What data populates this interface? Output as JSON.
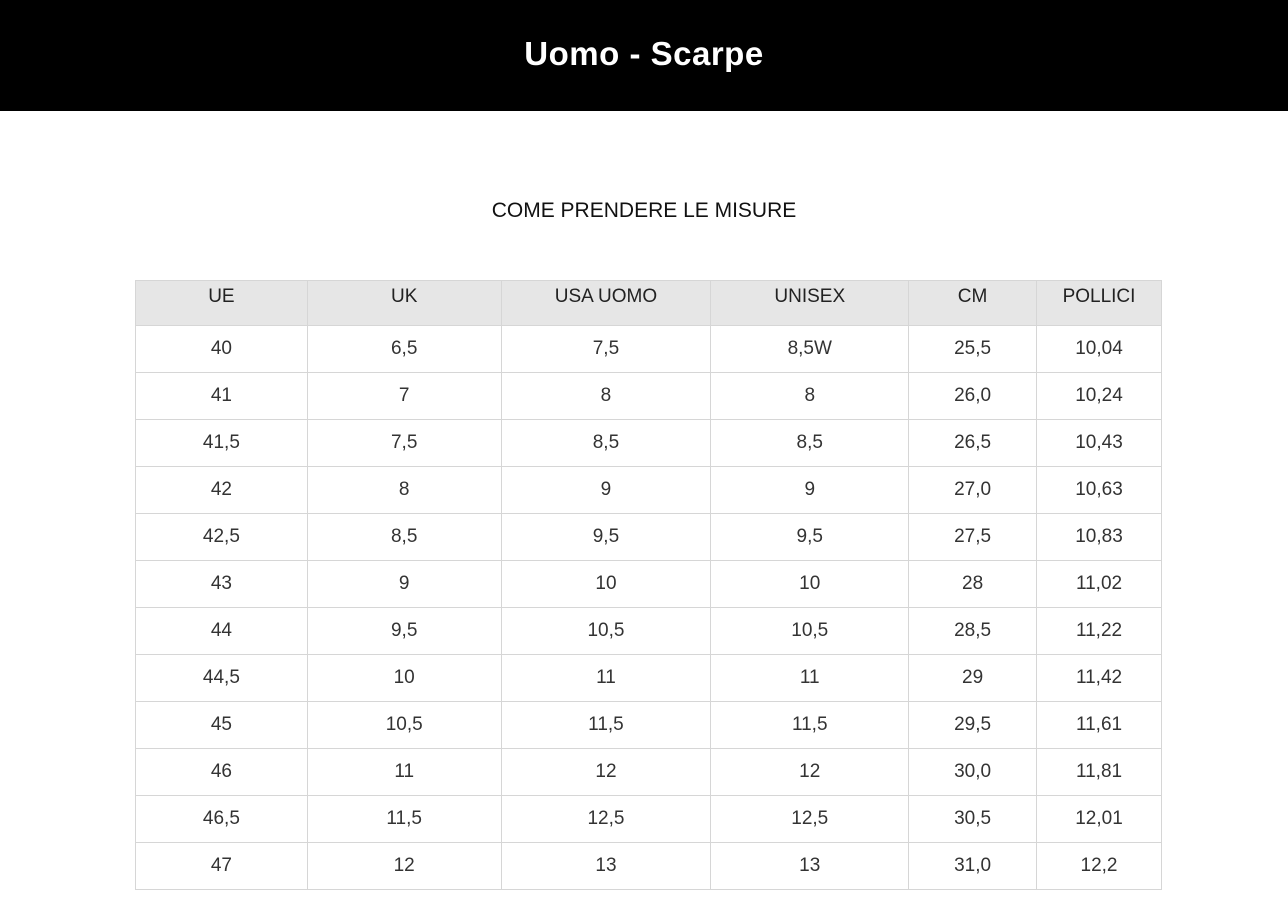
{
  "header": {
    "title": "Uomo - Scarpe"
  },
  "subtitle": "COME PRENDERE LE MISURE",
  "table": {
    "columns": [
      "UE",
      "UK",
      "USA UOMO",
      "UNISEX",
      "CM",
      "POLLICI"
    ],
    "rows": [
      [
        "40",
        "6,5",
        "7,5",
        "8,5W",
        "25,5",
        "10,04"
      ],
      [
        "41",
        "7",
        "8",
        "8",
        "26,0",
        "10,24"
      ],
      [
        "41,5",
        "7,5",
        "8,5",
        "8,5",
        "26,5",
        "10,43"
      ],
      [
        "42",
        "8",
        "9",
        "9",
        "27,0",
        "10,63"
      ],
      [
        "42,5",
        "8,5",
        "9,5",
        "9,5",
        "27,5",
        "10,83"
      ],
      [
        "43",
        "9",
        "10",
        "10",
        "28",
        "11,02"
      ],
      [
        "44",
        "9,5",
        "10,5",
        "10,5",
        "28,5",
        "11,22"
      ],
      [
        "44,5",
        "10",
        "11",
        "11",
        "29",
        "11,42"
      ],
      [
        "45",
        "10,5",
        "11,5",
        "11,5",
        "29,5",
        "11,61"
      ],
      [
        "46",
        "11",
        "12",
        "12",
        "30,0",
        "11,81"
      ],
      [
        "46,5",
        "11,5",
        "12,5",
        "12,5",
        "30,5",
        "12,01"
      ],
      [
        "47",
        "12",
        "13",
        "13",
        "31,0",
        "12,2"
      ]
    ]
  },
  "colors": {
    "header_bg": "#000000",
    "table_header_bg": "#e6e6e6",
    "border": "#d6d6d6"
  }
}
